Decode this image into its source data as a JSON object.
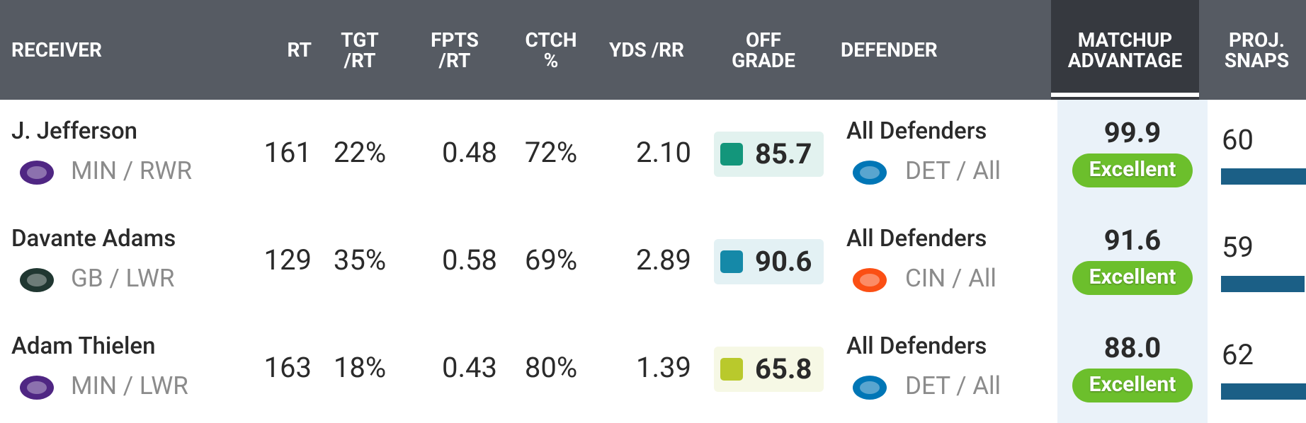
{
  "header": {
    "columns": [
      "RECEIVER",
      "RT",
      "TGT\n/RT",
      "FPTS\n/RT",
      "CTCH\n%",
      "YDS /RR",
      "OFF\nGRADE",
      "DEFENDER",
      "MATCHUP\nADVANTAGE",
      "PROJ.\nSNAPS"
    ]
  },
  "rows": [
    {
      "name": "J. Jefferson",
      "team_pos": "MIN / RWR",
      "logo_color": "#4f2683",
      "rt": "161",
      "tgt_rt": "22%",
      "fpts_rt": "0.48",
      "ctch": "72%",
      "yds_rr": "2.10",
      "grade": "85.7",
      "grade_color": "#13967b",
      "defender": "All Defenders",
      "def_team": "DET / All",
      "def_logo_color": "#0076b6",
      "matchup": "99.9",
      "rating": "Excellent",
      "snaps": 60
    },
    {
      "name": "Davante Adams",
      "team_pos": "GB / LWR",
      "logo_color": "#203731",
      "rt": "129",
      "tgt_rt": "35%",
      "fpts_rt": "0.58",
      "ctch": "69%",
      "yds_rr": "2.89",
      "grade": "90.6",
      "grade_color": "#1589a8",
      "defender": "All Defenders",
      "def_team": "CIN / All",
      "def_logo_color": "#fb4f14",
      "matchup": "91.6",
      "rating": "Excellent",
      "snaps": 59
    },
    {
      "name": "Adam Thielen",
      "team_pos": "MIN / LWR",
      "logo_color": "#4f2683",
      "rt": "163",
      "tgt_rt": "18%",
      "fpts_rt": "0.43",
      "ctch": "80%",
      "yds_rr": "1.39",
      "grade": "65.8",
      "grade_color": "#b9c92c",
      "defender": "All Defenders",
      "def_team": "DET / All",
      "def_logo_color": "#0076b6",
      "matchup": "88.0",
      "rating": "Excellent",
      "snaps": 62
    }
  ]
}
